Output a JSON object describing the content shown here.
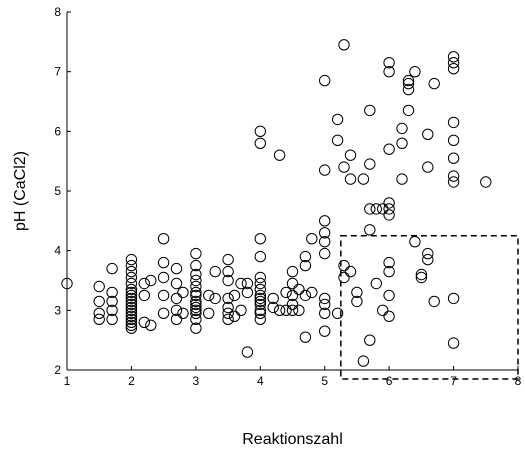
{
  "chart_data": {
    "type": "scatter",
    "title": "",
    "xlabel": "Reaktionszahl",
    "ylabel": "pH (CaCl2)",
    "xlim": [
      1,
      8
    ],
    "ylim": [
      2,
      8
    ],
    "xticks": [
      "1",
      "2",
      "3",
      "4",
      "5",
      "6",
      "7",
      "8"
    ],
    "yticks": [
      "2",
      "3",
      "4",
      "5",
      "6",
      "7",
      "8"
    ],
    "grid": false,
    "legend": "none",
    "marker": "open-circle",
    "annotations": [
      {
        "type": "dashed-rectangle",
        "x": [
          5.25,
          8.0
        ],
        "y": [
          1.85,
          4.25
        ]
      }
    ],
    "points": [
      [
        1.0,
        3.45
      ],
      [
        1.5,
        2.85
      ],
      [
        1.5,
        2.95
      ],
      [
        1.5,
        3.15
      ],
      [
        1.5,
        3.4
      ],
      [
        1.7,
        2.85
      ],
      [
        1.7,
        3.0
      ],
      [
        1.7,
        3.15
      ],
      [
        1.7,
        3.3
      ],
      [
        1.7,
        3.7
      ],
      [
        2.0,
        2.7
      ],
      [
        2.0,
        2.75
      ],
      [
        2.0,
        2.8
      ],
      [
        2.0,
        2.85
      ],
      [
        2.0,
        2.9
      ],
      [
        2.0,
        2.95
      ],
      [
        2.0,
        3.0
      ],
      [
        2.0,
        3.05
      ],
      [
        2.0,
        3.1
      ],
      [
        2.0,
        3.15
      ],
      [
        2.0,
        3.2
      ],
      [
        2.0,
        3.25
      ],
      [
        2.0,
        3.3
      ],
      [
        2.0,
        3.35
      ],
      [
        2.0,
        3.45
      ],
      [
        2.0,
        3.55
      ],
      [
        2.0,
        3.65
      ],
      [
        2.0,
        3.75
      ],
      [
        2.0,
        3.85
      ],
      [
        2.2,
        2.8
      ],
      [
        2.2,
        3.25
      ],
      [
        2.2,
        3.45
      ],
      [
        2.3,
        2.75
      ],
      [
        2.3,
        3.5
      ],
      [
        2.5,
        2.95
      ],
      [
        2.5,
        3.25
      ],
      [
        2.5,
        3.55
      ],
      [
        2.5,
        3.8
      ],
      [
        2.5,
        4.2
      ],
      [
        2.7,
        2.85
      ],
      [
        2.7,
        3.0
      ],
      [
        2.7,
        3.2
      ],
      [
        2.7,
        3.45
      ],
      [
        2.7,
        3.7
      ],
      [
        2.8,
        2.95
      ],
      [
        2.8,
        3.3
      ],
      [
        3.0,
        2.7
      ],
      [
        3.0,
        2.85
      ],
      [
        3.0,
        2.95
      ],
      [
        3.0,
        3.0
      ],
      [
        3.0,
        3.05
      ],
      [
        3.0,
        3.1
      ],
      [
        3.0,
        3.15
      ],
      [
        3.0,
        3.25
      ],
      [
        3.0,
        3.3
      ],
      [
        3.0,
        3.4
      ],
      [
        3.0,
        3.5
      ],
      [
        3.0,
        3.6
      ],
      [
        3.0,
        3.75
      ],
      [
        3.0,
        3.95
      ],
      [
        3.2,
        2.95
      ],
      [
        3.2,
        3.25
      ],
      [
        3.3,
        3.2
      ],
      [
        3.3,
        3.65
      ],
      [
        3.5,
        2.85
      ],
      [
        3.5,
        2.95
      ],
      [
        3.5,
        3.05
      ],
      [
        3.5,
        3.2
      ],
      [
        3.5,
        3.5
      ],
      [
        3.5,
        3.65
      ],
      [
        3.5,
        3.85
      ],
      [
        3.6,
        2.9
      ],
      [
        3.6,
        3.25
      ],
      [
        3.7,
        3.0
      ],
      [
        3.7,
        3.45
      ],
      [
        3.8,
        2.3
      ],
      [
        3.8,
        3.3
      ],
      [
        3.8,
        3.45
      ],
      [
        4.0,
        2.85
      ],
      [
        4.0,
        2.95
      ],
      [
        4.0,
        3.0
      ],
      [
        4.0,
        3.1
      ],
      [
        4.0,
        3.15
      ],
      [
        4.0,
        3.2
      ],
      [
        4.0,
        3.25
      ],
      [
        4.0,
        3.35
      ],
      [
        4.0,
        3.45
      ],
      [
        4.0,
        3.55
      ],
      [
        4.0,
        3.9
      ],
      [
        4.0,
        4.2
      ],
      [
        4.0,
        5.8
      ],
      [
        4.0,
        6.0
      ],
      [
        4.2,
        3.05
      ],
      [
        4.2,
        3.2
      ],
      [
        4.3,
        3.0
      ],
      [
        4.3,
        5.6
      ],
      [
        4.4,
        3.0
      ],
      [
        4.4,
        3.3
      ],
      [
        4.5,
        3.0
      ],
      [
        4.5,
        3.1
      ],
      [
        4.5,
        3.25
      ],
      [
        4.5,
        3.45
      ],
      [
        4.5,
        3.65
      ],
      [
        4.6,
        3.0
      ],
      [
        4.6,
        3.35
      ],
      [
        4.7,
        2.55
      ],
      [
        4.7,
        3.25
      ],
      [
        4.7,
        3.75
      ],
      [
        4.7,
        3.9
      ],
      [
        4.8,
        3.3
      ],
      [
        4.8,
        4.2
      ],
      [
        5.0,
        2.65
      ],
      [
        5.0,
        2.95
      ],
      [
        5.0,
        3.1
      ],
      [
        5.0,
        3.2
      ],
      [
        5.0,
        3.95
      ],
      [
        5.0,
        4.15
      ],
      [
        5.0,
        4.3
      ],
      [
        5.0,
        4.5
      ],
      [
        5.0,
        5.35
      ],
      [
        5.0,
        6.85
      ],
      [
        5.2,
        6.2
      ],
      [
        5.2,
        2.95
      ],
      [
        5.2,
        5.85
      ],
      [
        5.3,
        3.75
      ],
      [
        5.3,
        3.55
      ],
      [
        5.3,
        5.4
      ],
      [
        5.3,
        7.45
      ],
      [
        5.4,
        5.6
      ],
      [
        5.4,
        5.2
      ],
      [
        5.4,
        3.65
      ],
      [
        5.5,
        3.3
      ],
      [
        5.5,
        3.15
      ],
      [
        5.6,
        2.15
      ],
      [
        5.6,
        5.2
      ],
      [
        5.7,
        2.5
      ],
      [
        5.7,
        4.35
      ],
      [
        5.7,
        4.7
      ],
      [
        5.7,
        6.35
      ],
      [
        5.7,
        5.45
      ],
      [
        5.8,
        3.45
      ],
      [
        5.8,
        4.7
      ],
      [
        5.9,
        4.7
      ],
      [
        5.9,
        3.0
      ],
      [
        6.0,
        2.9
      ],
      [
        6.0,
        3.25
      ],
      [
        6.0,
        3.65
      ],
      [
        6.0,
        3.8
      ],
      [
        6.0,
        4.6
      ],
      [
        6.0,
        4.7
      ],
      [
        6.0,
        4.8
      ],
      [
        6.0,
        5.7
      ],
      [
        6.0,
        7.0
      ],
      [
        6.0,
        7.15
      ],
      [
        6.2,
        5.2
      ],
      [
        6.2,
        5.8
      ],
      [
        6.2,
        6.05
      ],
      [
        6.3,
        6.7
      ],
      [
        6.3,
        6.8
      ],
      [
        6.3,
        6.35
      ],
      [
        6.3,
        6.85
      ],
      [
        6.4,
        7.0
      ],
      [
        6.4,
        4.15
      ],
      [
        6.5,
        3.6
      ],
      [
        6.5,
        3.55
      ],
      [
        6.6,
        3.95
      ],
      [
        6.6,
        3.85
      ],
      [
        6.6,
        5.95
      ],
      [
        6.6,
        5.4
      ],
      [
        6.7,
        6.8
      ],
      [
        6.7,
        3.15
      ],
      [
        7.0,
        2.45
      ],
      [
        7.0,
        3.2
      ],
      [
        7.0,
        5.15
      ],
      [
        7.0,
        5.25
      ],
      [
        7.0,
        5.55
      ],
      [
        7.0,
        5.85
      ],
      [
        7.0,
        6.15
      ],
      [
        7.0,
        7.05
      ],
      [
        7.0,
        7.15
      ],
      [
        7.0,
        7.25
      ],
      [
        7.5,
        5.15
      ]
    ]
  }
}
